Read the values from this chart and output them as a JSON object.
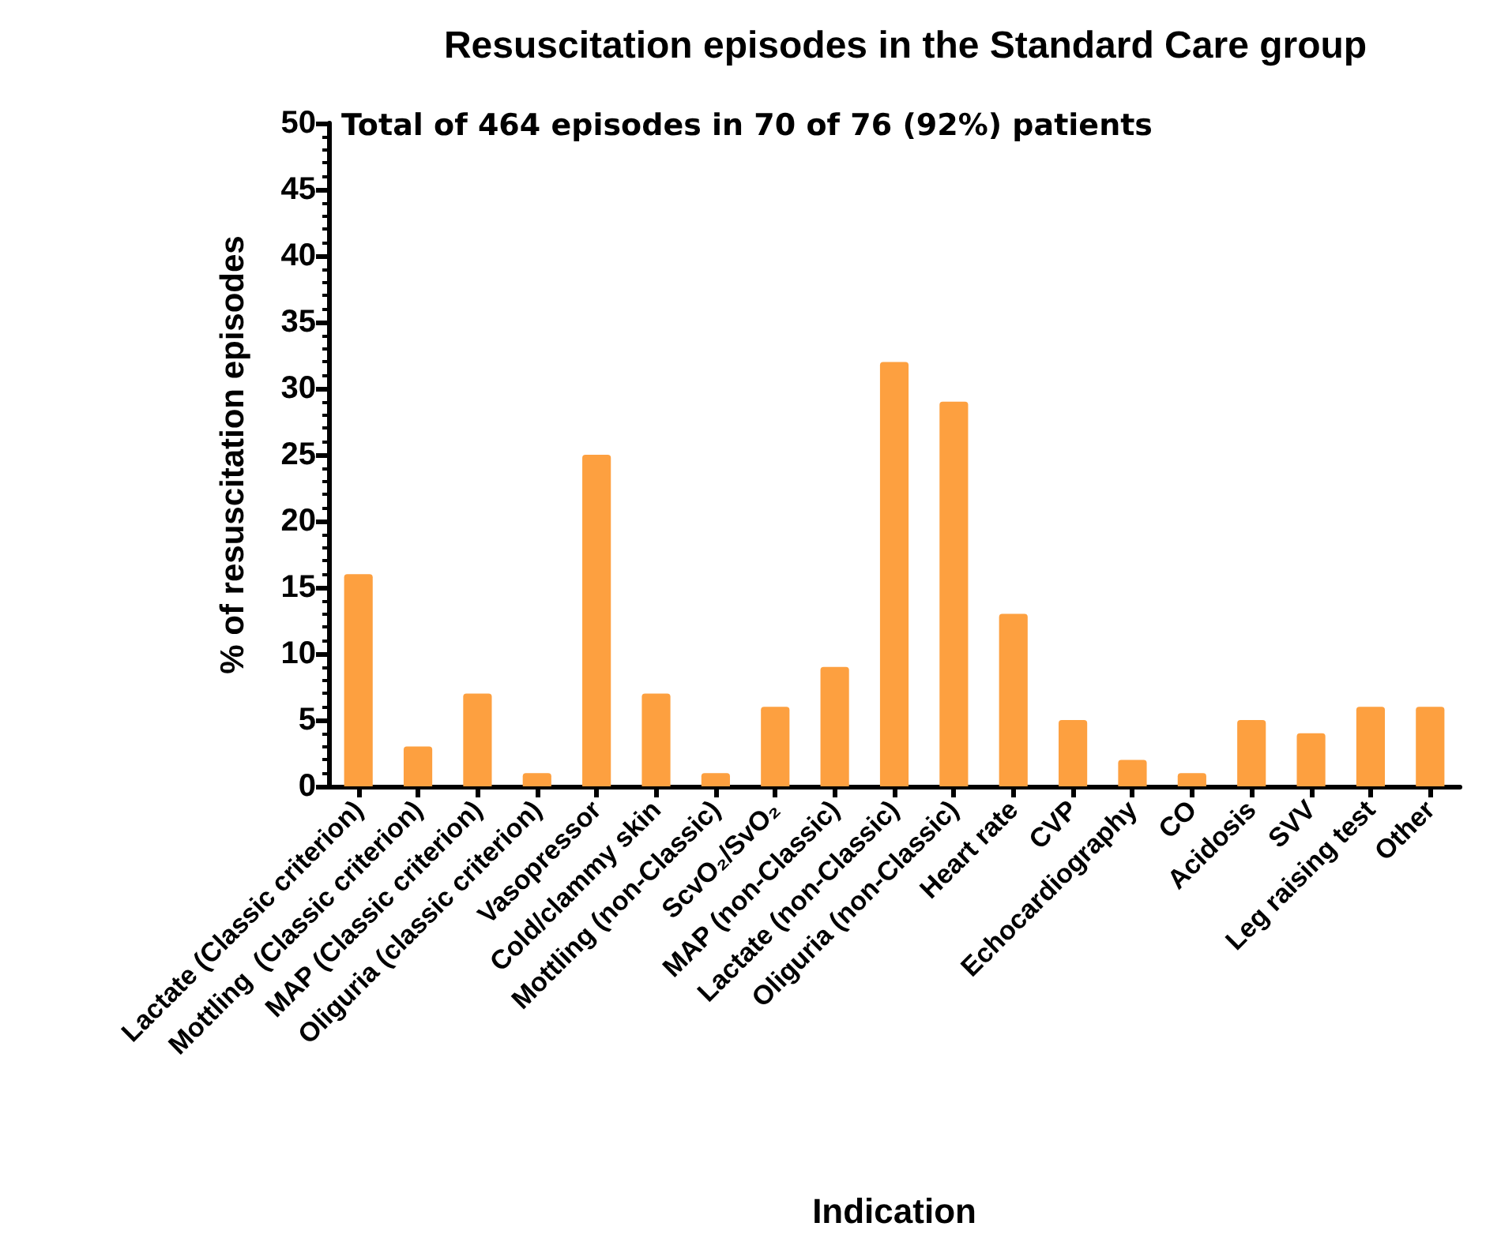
{
  "chart_data": {
    "type": "bar",
    "title": "Resuscitation episodes in the Standard Care group",
    "xlabel": "Indication",
    "ylabel": "% of resuscitation episodes",
    "annotations": [
      "Total of 464 episodes in 70 of 76 (92%) patients"
    ],
    "categories": [
      "Lactate (Classic criterion)",
      "Mottling  (Classic criterion)",
      "MAP (Classic criterion)",
      "Oliguria (classic criterion)",
      "Vasopressor",
      "Cold/clammy skin",
      "Mottling (non-Classic)",
      "ScvO₂/SvO₂",
      "MAP (non-Classic)",
      "Lactate (non-Classic)",
      "Oliguria (non-Classic)",
      "Heart rate",
      "CVP",
      "Echocardiography",
      "CO",
      "Acidosis",
      "SVV",
      "Leg raising test",
      "Other"
    ],
    "values": [
      16,
      3,
      7,
      1,
      25,
      7,
      1,
      6,
      9,
      32,
      29,
      13,
      5,
      2,
      1,
      5,
      4,
      6,
      6
    ],
    "color": "#fda040",
    "ylim": [
      0,
      50
    ],
    "yticks": [
      0,
      5,
      10,
      15,
      20,
      25,
      30,
      35,
      40,
      45,
      50
    ],
    "grid": false
  }
}
